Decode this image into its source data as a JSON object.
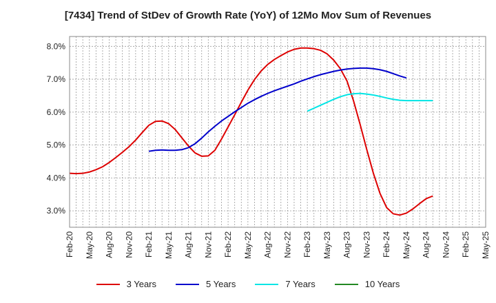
{
  "chart_data": {
    "type": "line",
    "title": "[7434]  Trend of StDev of Growth Rate (YoY) of 12Mo Mov Sum of Revenues",
    "xlabel": "",
    "ylabel": "",
    "ylim": [
      2.5,
      8.3
    ],
    "yticks": [
      3.0,
      4.0,
      5.0,
      6.0,
      7.0,
      8.0
    ],
    "ytick_labels": [
      "3.0%",
      "4.0%",
      "5.0%",
      "6.0%",
      "7.0%",
      "8.0%"
    ],
    "x_start": "Feb-20",
    "x_tick_labels": [
      "Feb-20",
      "May-20",
      "Aug-20",
      "Nov-20",
      "Feb-21",
      "May-21",
      "Aug-21",
      "Nov-21",
      "Feb-22",
      "May-22",
      "Aug-22",
      "Nov-22",
      "Feb-23",
      "May-23",
      "Aug-23",
      "Nov-23",
      "Feb-24",
      "May-24",
      "Aug-24",
      "Nov-24",
      "Feb-25",
      "May-25"
    ],
    "grid": true,
    "legend_position": "bottom",
    "series": [
      {
        "name": "3 Years",
        "color": "#dd0000",
        "start_index": 0,
        "values": [
          4.14,
          4.13,
          4.14,
          4.18,
          4.25,
          4.34,
          4.47,
          4.62,
          4.78,
          4.95,
          5.15,
          5.38,
          5.6,
          5.72,
          5.73,
          5.65,
          5.47,
          5.22,
          4.97,
          4.76,
          4.66,
          4.67,
          4.84,
          5.18,
          5.55,
          5.92,
          6.3,
          6.67,
          6.99,
          7.25,
          7.45,
          7.6,
          7.72,
          7.83,
          7.91,
          7.95,
          7.95,
          7.93,
          7.88,
          7.77,
          7.58,
          7.32,
          6.95,
          6.34,
          5.62,
          4.86,
          4.14,
          3.53,
          3.1,
          2.91,
          2.87,
          2.93,
          3.06,
          3.22,
          3.37,
          3.45
        ]
      },
      {
        "name": "5 Years",
        "color": "#0000cc",
        "start_index": 12,
        "values": [
          4.81,
          4.84,
          4.85,
          4.84,
          4.84,
          4.86,
          4.92,
          5.04,
          5.21,
          5.4,
          5.57,
          5.73,
          5.87,
          6.01,
          6.14,
          6.27,
          6.38,
          6.48,
          6.57,
          6.65,
          6.72,
          6.79,
          6.86,
          6.94,
          7.01,
          7.08,
          7.14,
          7.19,
          7.24,
          7.28,
          7.31,
          7.33,
          7.34,
          7.34,
          7.32,
          7.29,
          7.24,
          7.17,
          7.1,
          7.04
        ]
      },
      {
        "name": "7 Years",
        "color": "#00e5e5",
        "start_index": 36,
        "values": [
          6.03,
          6.12,
          6.21,
          6.3,
          6.39,
          6.47,
          6.53,
          6.56,
          6.57,
          6.55,
          6.52,
          6.48,
          6.43,
          6.39,
          6.36,
          6.35,
          6.35,
          6.35,
          6.35,
          6.35
        ]
      },
      {
        "name": "10 Years",
        "color": "#228822",
        "start_index": 0,
        "values": []
      }
    ]
  }
}
